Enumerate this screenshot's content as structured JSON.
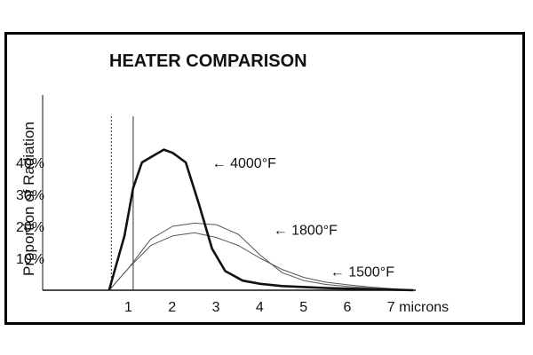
{
  "chart_data": {
    "type": "line",
    "title": "HEATER COMPARISON",
    "xlabel": "",
    "ylabel": "Proportion of Radiation",
    "x_ticks": [
      "1",
      "2",
      "3",
      "4",
      "5",
      "6",
      "7 microns"
    ],
    "y_ticks": [
      "10%",
      "20%",
      "30%",
      "40%"
    ],
    "xlim": [
      0.5,
      7.6
    ],
    "ylim": [
      0,
      45
    ],
    "grid": false,
    "series": [
      {
        "name": "4000°F",
        "stroke": "#111111",
        "stroke_width": 2.6,
        "points": [
          [
            0.55,
            0
          ],
          [
            0.9,
            17
          ],
          [
            1.1,
            32
          ],
          [
            1.3,
            40
          ],
          [
            1.55,
            42
          ],
          [
            1.8,
            44
          ],
          [
            2.0,
            43
          ],
          [
            2.3,
            40
          ],
          [
            2.6,
            27
          ],
          [
            2.9,
            13
          ],
          [
            3.2,
            6
          ],
          [
            3.6,
            3
          ],
          [
            4.0,
            2
          ],
          [
            4.5,
            1.3
          ],
          [
            5.0,
            1
          ],
          [
            5.5,
            0.7
          ],
          [
            6.0,
            0.5
          ],
          [
            6.5,
            0.3
          ],
          [
            7.0,
            0.2
          ],
          [
            7.5,
            0
          ]
        ]
      },
      {
        "name": "1800°F",
        "stroke": "#555555",
        "stroke_width": 1,
        "points": [
          [
            0.55,
            0
          ],
          [
            1.0,
            7
          ],
          [
            1.5,
            16
          ],
          [
            2.0,
            20
          ],
          [
            2.5,
            21
          ],
          [
            3.0,
            20.5
          ],
          [
            3.5,
            17.5
          ],
          [
            4.0,
            11
          ],
          [
            4.5,
            5.5
          ],
          [
            5.0,
            3
          ],
          [
            5.5,
            1.8
          ],
          [
            6.0,
            1.2
          ],
          [
            6.5,
            0.7
          ],
          [
            7.0,
            0.3
          ],
          [
            7.5,
            0
          ]
        ]
      },
      {
        "name": "1500°F",
        "stroke": "#555555",
        "stroke_width": 1,
        "points": [
          [
            0.55,
            0
          ],
          [
            1.0,
            7
          ],
          [
            1.5,
            14
          ],
          [
            2.0,
            17
          ],
          [
            2.5,
            18
          ],
          [
            3.0,
            16.5
          ],
          [
            3.5,
            14
          ],
          [
            4.0,
            10
          ],
          [
            4.5,
            6.5
          ],
          [
            5.0,
            4
          ],
          [
            5.5,
            2.5
          ],
          [
            6.0,
            1.7
          ],
          [
            6.5,
            1
          ],
          [
            7.0,
            0.5
          ],
          [
            7.5,
            0
          ]
        ]
      }
    ],
    "vlines": [
      {
        "x": 0.6,
        "style": "dashed"
      },
      {
        "x": 1.1,
        "style": "solid"
      }
    ],
    "annotations": [
      {
        "text": "4000°F",
        "arrow": "←",
        "x": 2.9,
        "y": 40
      },
      {
        "text": "1800°F",
        "arrow": "←",
        "x": 4.3,
        "y": 19
      },
      {
        "text": "1500°F",
        "arrow": "←",
        "x": 5.6,
        "y": 6
      }
    ]
  }
}
